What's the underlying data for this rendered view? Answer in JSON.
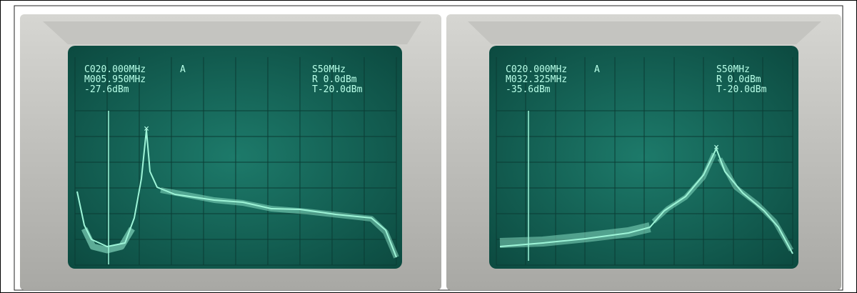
{
  "screens": [
    {
      "center": "C020.000MHz",
      "mode": "A",
      "marker_freq": "M005.950MHz",
      "marker_level": "-27.6dBm",
      "span": "S50MHz",
      "ref": "R 0.0dBm",
      "threshold": "T-20.0dBm"
    },
    {
      "center": "C020.000MHz",
      "mode": "A",
      "marker_freq": "M032.325MHz",
      "marker_level": "-35.6dBm",
      "span": "S50MHz",
      "ref": "R 0.0dBm",
      "threshold": "T-20.0dBm"
    }
  ]
}
